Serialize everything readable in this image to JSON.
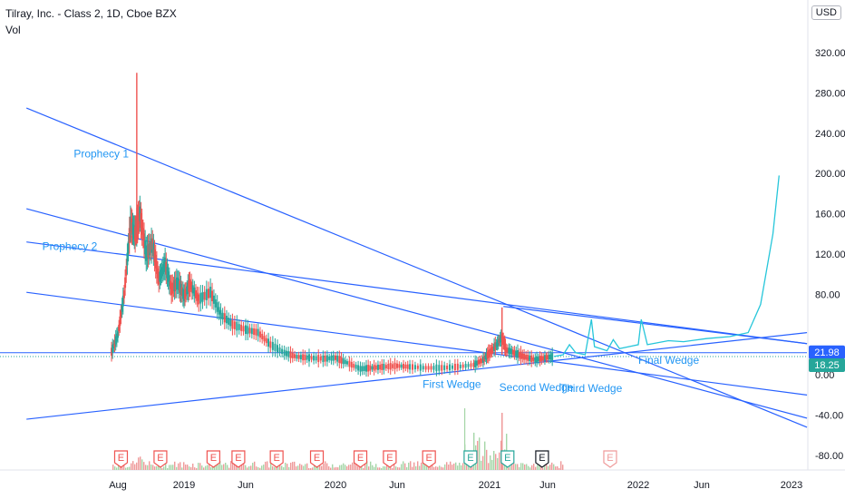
{
  "header": {
    "title": "Tilray, Inc. - Class 2, 1D, Cboe BZX",
    "subtitle": "Vol"
  },
  "currency_label": "USD",
  "colors": {
    "trendline": "#2962ff",
    "annotation": "#2196f3",
    "projection": "#26c6da",
    "up": "#26a69a",
    "down": "#ef5350",
    "price_label_1": "#2962ff",
    "price_label_2": "#2962ff"
  },
  "chart_data": {
    "type": "candlestick",
    "x_tick_labels": [
      "Aug",
      "2019",
      "Jun",
      "2020",
      "Jun",
      "2021",
      "Jun",
      "2022",
      "Jun",
      "2023"
    ],
    "y_ticks": [
      320,
      280,
      240,
      200,
      160,
      120,
      80,
      0,
      -40,
      -80
    ],
    "y_tick_labels": [
      "320.00",
      "280.00",
      "240.00",
      "200.00",
      "160.00",
      "120.00",
      "80.00",
      "0.00",
      "-40.00",
      "-80.00"
    ],
    "ylim": [
      -95,
      340
    ],
    "price_labels": [
      {
        "value": 21.98,
        "text": "21.98"
      },
      {
        "value": 18.25,
        "text": "18.25"
      }
    ],
    "price_path": [
      [
        2018.54,
        23
      ],
      [
        2018.58,
        40
      ],
      [
        2018.62,
        80
      ],
      [
        2018.66,
        150
      ],
      [
        2018.69,
        140
      ],
      [
        2018.72,
        160
      ],
      [
        2018.76,
        120
      ],
      [
        2018.8,
        130
      ],
      [
        2018.84,
        95
      ],
      [
        2018.88,
        110
      ],
      [
        2018.92,
        85
      ],
      [
        2018.96,
        92
      ],
      [
        2019.0,
        78
      ],
      [
        2019.04,
        90
      ],
      [
        2019.1,
        75
      ],
      [
        2019.18,
        82
      ],
      [
        2019.25,
        60
      ],
      [
        2019.33,
        50
      ],
      [
        2019.42,
        45
      ],
      [
        2019.5,
        42
      ],
      [
        2019.58,
        30
      ],
      [
        2019.67,
        22
      ],
      [
        2019.75,
        18
      ],
      [
        2019.83,
        17
      ],
      [
        2019.92,
        16
      ],
      [
        2020.0,
        17
      ],
      [
        2020.08,
        12
      ],
      [
        2020.17,
        6
      ],
      [
        2020.25,
        7
      ],
      [
        2020.33,
        8
      ],
      [
        2020.42,
        9
      ],
      [
        2020.5,
        8
      ],
      [
        2020.6,
        7
      ],
      [
        2020.7,
        7
      ],
      [
        2020.8,
        8
      ],
      [
        2020.9,
        10
      ],
      [
        2020.96,
        15
      ],
      [
        2021.0,
        22
      ],
      [
        2021.05,
        30
      ],
      [
        2021.09,
        38
      ],
      [
        2021.12,
        25
      ],
      [
        2021.18,
        22
      ],
      [
        2021.25,
        18
      ],
      [
        2021.33,
        15
      ],
      [
        2021.4,
        17
      ],
      [
        2021.46,
        18.25
      ]
    ],
    "projection_path": [
      [
        2021.46,
        18.25
      ],
      [
        2021.52,
        20
      ],
      [
        2021.56,
        30
      ],
      [
        2021.6,
        22
      ],
      [
        2021.66,
        20
      ],
      [
        2021.7,
        55
      ],
      [
        2021.72,
        28
      ],
      [
        2021.8,
        24
      ],
      [
        2021.84,
        35
      ],
      [
        2021.88,
        26
      ],
      [
        2022.0,
        30
      ],
      [
        2022.02,
        55
      ],
      [
        2022.06,
        30
      ],
      [
        2022.2,
        34
      ],
      [
        2022.3,
        33
      ],
      [
        2022.45,
        36
      ],
      [
        2022.6,
        38
      ],
      [
        2022.72,
        42
      ],
      [
        2022.8,
        70
      ],
      [
        2022.88,
        140
      ],
      [
        2022.92,
        198
      ]
    ],
    "trendlines": [
      {
        "name": "Prophecy 1",
        "from": [
          2018.0,
          265
        ],
        "to": [
          2023.1,
          -52
        ]
      },
      {
        "name": "Prophecy 2",
        "from": [
          2018.0,
          132
        ],
        "to": [
          2023.1,
          31
        ]
      },
      {
        "name": "line-3",
        "from": [
          2018.0,
          165
        ],
        "to": [
          2023.1,
          -43
        ]
      },
      {
        "name": "line-4",
        "from": [
          2018.0,
          82
        ],
        "to": [
          2023.1,
          -20
        ]
      },
      {
        "name": "line-5",
        "from": [
          2018.0,
          -44
        ],
        "to": [
          2023.1,
          42
        ]
      },
      {
        "name": "line-6",
        "from": [
          2021.1,
          68
        ],
        "to": [
          2023.1,
          31
        ]
      }
    ],
    "horizontal_lines": [
      21.98
    ],
    "dotted_lines": [
      18.25
    ],
    "annotations": [
      {
        "text": "Prophecy 1",
        "x": 2018.3,
        "y": 216
      },
      {
        "text": "Prophecy 2",
        "x": 2018.1,
        "y": 124
      },
      {
        "text": "First Wedge",
        "x": 2020.58,
        "y": -13
      },
      {
        "text": "Second Wedge",
        "x": 2021.07,
        "y": -16
      },
      {
        "text": "Third Wedge",
        "x": 2021.5,
        "y": -17
      },
      {
        "text": "Final Wedge",
        "x": 2022.0,
        "y": 11
      }
    ],
    "earnings_markers": [
      {
        "x": 2018.6,
        "label": "E",
        "color": "#ef5350"
      },
      {
        "x": 2018.85,
        "label": "E",
        "color": "#ef5350"
      },
      {
        "x": 2019.2,
        "label": "E",
        "color": "#ef5350"
      },
      {
        "x": 2019.37,
        "label": "E",
        "color": "#ef5350"
      },
      {
        "x": 2019.62,
        "label": "E",
        "color": "#ef5350"
      },
      {
        "x": 2019.88,
        "label": "E",
        "color": "#ef5350"
      },
      {
        "x": 2020.17,
        "label": "E",
        "color": "#ef5350"
      },
      {
        "x": 2020.37,
        "label": "E",
        "color": "#ef5350"
      },
      {
        "x": 2020.62,
        "label": "E",
        "color": "#ef5350"
      },
      {
        "x": 2020.88,
        "label": "E",
        "color": "#26a69a"
      },
      {
        "x": 2021.13,
        "label": "E",
        "color": "#26a69a"
      },
      {
        "x": 2021.38,
        "label": "E",
        "color": "#131722"
      },
      {
        "x": 2021.82,
        "label": "E",
        "color": "#ef9a9a"
      }
    ]
  }
}
